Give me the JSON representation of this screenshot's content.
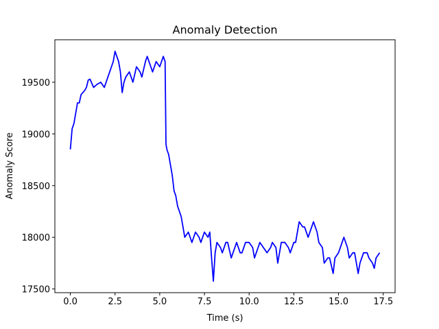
{
  "chart_data": {
    "type": "line",
    "title": "Anomaly Detection",
    "x_label": "Time (s)",
    "y_label": "Anomaly Score",
    "x": [
      0,
      0.1,
      0.2,
      0.3,
      0.4,
      0.5,
      0.6,
      0.7,
      0.8,
      0.9,
      1.0,
      1.1,
      1.3,
      1.5,
      1.7,
      1.9,
      2.1,
      2.2,
      2.3,
      2.4,
      2.5,
      2.6,
      2.7,
      2.8,
      2.9,
      3.0,
      3.1,
      3.3,
      3.5,
      3.7,
      3.9,
      4.0,
      4.2,
      4.3,
      4.5,
      4.6,
      4.8,
      5.0,
      5.2,
      5.3,
      5.35,
      5.4,
      5.5,
      5.6,
      5.7,
      5.8,
      5.9,
      6.0,
      6.1,
      6.2,
      6.3,
      6.4,
      6.6,
      6.8,
      7.0,
      7.2,
      7.3,
      7.5,
      7.7,
      7.8,
      7.9,
      8.0,
      8.1,
      8.2,
      8.4,
      8.5,
      8.7,
      8.8,
      9.0,
      9.2,
      9.3,
      9.5,
      9.6,
      9.8,
      10.0,
      10.2,
      10.3,
      10.5,
      10.6,
      10.8,
      11.0,
      11.2,
      11.3,
      11.5,
      11.6,
      11.8,
      12.0,
      12.2,
      12.3,
      12.5,
      12.6,
      12.8,
      13.0,
      13.1,
      13.3,
      13.5,
      13.6,
      13.8,
      13.9,
      14.1,
      14.2,
      14.4,
      14.5,
      14.7,
      14.8,
      15.0,
      15.2,
      15.3,
      15.5,
      15.6,
      15.8,
      15.9,
      16.1,
      16.2,
      16.4,
      16.6,
      16.7,
      16.9,
      17.0,
      17.1,
      17.3
    ],
    "values": [
      18850,
      19050,
      19100,
      19200,
      19300,
      19300,
      19380,
      19400,
      19420,
      19450,
      19520,
      19530,
      19450,
      19480,
      19500,
      19450,
      19550,
      19600,
      19650,
      19700,
      19800,
      19750,
      19700,
      19600,
      19400,
      19500,
      19550,
      19600,
      19500,
      19650,
      19600,
      19550,
      19700,
      19750,
      19650,
      19600,
      19700,
      19650,
      19750,
      19700,
      18900,
      18850,
      18800,
      18700,
      18600,
      18450,
      18400,
      18300,
      18250,
      18200,
      18100,
      18000,
      18050,
      17950,
      18050,
      18000,
      17950,
      18050,
      18000,
      18050,
      17800,
      17575,
      17850,
      17950,
      17900,
      17850,
      17950,
      17950,
      17800,
      17900,
      17950,
      17850,
      17850,
      17950,
      17950,
      17900,
      17800,
      17900,
      17950,
      17900,
      17850,
      17900,
      17950,
      17900,
      17750,
      17950,
      17950,
      17900,
      17850,
      17950,
      17950,
      18150,
      18100,
      18100,
      18000,
      18100,
      18150,
      18050,
      17950,
      17900,
      17750,
      17800,
      17800,
      17650,
      17800,
      17850,
      17950,
      18000,
      17900,
      17800,
      17850,
      17850,
      17650,
      17750,
      17850,
      17850,
      17800,
      17750,
      17700,
      17800,
      17850
    ],
    "color": "#0000ff",
    "xlim": [
      -0.865,
      18.165
    ],
    "ylim": [
      17464,
      19911
    ],
    "xticks": [
      {
        "value": 0,
        "label": "0.0"
      },
      2.5,
      {
        "value": 5,
        "label": "5.0"
      },
      7.5,
      {
        "value": 10,
        "label": "10.0"
      },
      12.5,
      {
        "value": 15,
        "label": "15.0"
      },
      17.5
    ],
    "yticks": [
      17500,
      18000,
      18500,
      19000,
      19500
    ],
    "grid": false
  }
}
